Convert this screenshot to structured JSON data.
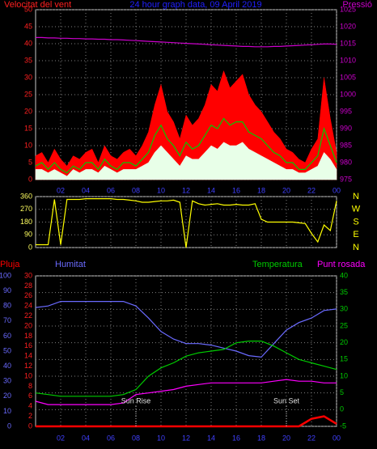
{
  "chart_data": [
    {
      "type": "line",
      "title": "24 hour graph data, 09 April 2019",
      "y_label": "Velocitat del vent",
      "xlim": [
        0,
        24
      ],
      "xticks": [
        {
          "value": 2,
          "label": "02"
        },
        {
          "value": 4,
          "label": "04"
        },
        {
          "value": 6,
          "label": "06"
        },
        {
          "value": 8,
          "label": "08"
        },
        {
          "value": 10,
          "label": "10"
        },
        12,
        14,
        16,
        18,
        20,
        22,
        {
          "value": 24,
          "label": "00"
        }
      ],
      "xcolor": "#4040ff",
      "ylim": [
        0,
        50
      ],
      "yticks": [
        0,
        5,
        10,
        15,
        20,
        25,
        30,
        35,
        40,
        45,
        50
      ],
      "ycolor": "#ff2020",
      "y2lim": [
        975,
        1025
      ],
      "y2ticks": [
        975,
        980,
        985,
        990,
        995,
        1000,
        1005,
        1010,
        1015,
        1020,
        1025
      ],
      "y2color": "#cc00cc",
      "grid": "y",
      "x": [
        0,
        0.5,
        1,
        1.5,
        2,
        2.5,
        3,
        3.5,
        4,
        4.5,
        5,
        5.5,
        6,
        6.5,
        7,
        7.5,
        8,
        8.5,
        9,
        9.5,
        10,
        10.5,
        11,
        11.5,
        12,
        12.5,
        13,
        13.5,
        14,
        14.5,
        15,
        15.5,
        16,
        16.5,
        17,
        17.5,
        18,
        18.5,
        19,
        19.5,
        20,
        20.5,
        21,
        21.5,
        22,
        22.5,
        23,
        23.5,
        24
      ],
      "series": [
        {
          "color": "#ff0000",
          "area": true,
          "values": [
            7,
            8,
            5,
            9,
            6,
            4,
            7,
            6,
            8,
            9,
            5,
            10,
            7,
            6,
            8,
            9,
            7,
            10,
            14,
            22,
            28,
            20,
            17,
            12,
            19,
            16,
            18,
            22,
            28,
            26,
            32,
            27,
            29,
            31,
            25,
            22,
            20,
            17,
            14,
            12,
            9,
            8,
            6,
            5,
            9,
            12,
            30,
            18,
            8
          ]
        },
        {
          "color": "#e8ffe8",
          "area": true,
          "values": [
            3,
            3,
            2,
            3,
            2,
            1,
            3,
            2,
            3,
            3,
            2,
            4,
            3,
            2,
            3,
            3,
            3,
            4,
            5,
            8,
            10,
            8,
            6,
            4,
            7,
            6,
            6,
            8,
            10,
            9,
            11,
            10,
            10,
            11,
            9,
            8,
            7,
            6,
            5,
            4,
            3,
            3,
            2,
            2,
            3,
            4,
            8,
            6,
            3
          ]
        },
        {
          "color": "#00cc00",
          "values": [
            4,
            5,
            3,
            5,
            3,
            2,
            4,
            3,
            5,
            5,
            3,
            6,
            4,
            3,
            5,
            5,
            4,
            6,
            8,
            13,
            16,
            12,
            10,
            7,
            11,
            9,
            10,
            13,
            16,
            15,
            18,
            16,
            17,
            17,
            14,
            13,
            12,
            10,
            8,
            7,
            5,
            5,
            3,
            3,
            5,
            7,
            15,
            10,
            5
          ]
        },
        {
          "name": "Pressió",
          "color": "#cc00cc",
          "axis": "y2",
          "values": [
            1016.8,
            1016.8,
            1016.7,
            1016.7,
            1016.6,
            1016.6,
            1016.5,
            1016.5,
            1016.4,
            1016.4,
            1016.3,
            1016.3,
            1016.2,
            1016.2,
            1016.1,
            1016.0,
            1015.9,
            1015.8,
            1015.7,
            1015.6,
            1015.5,
            1015.4,
            1015.3,
            1015.2,
            1015.1,
            1015.0,
            1014.9,
            1014.8,
            1014.7,
            1014.6,
            1014.5,
            1014.4,
            1014.3,
            1014.2,
            1014.2,
            1014.1,
            1014.1,
            1014.1,
            1014.2,
            1014.2,
            1014.3,
            1014.4,
            1014.5,
            1014.6,
            1014.7,
            1014.8,
            1014.9,
            1014.9,
            1014.8
          ]
        }
      ]
    },
    {
      "type": "line",
      "xlim": [
        0,
        24
      ],
      "ylim": [
        0,
        360
      ],
      "yticks": [
        0,
        90,
        180,
        270,
        360
      ],
      "ycolor": "#ffff60",
      "y2lim": [
        0,
        360
      ],
      "y2ticks": [
        {
          "value": 0,
          "label": "N"
        },
        {
          "value": 90,
          "label": "E"
        },
        {
          "value": 180,
          "label": "S"
        },
        {
          "value": 270,
          "label": "W"
        },
        {
          "value": 360,
          "label": "N"
        }
      ],
      "y2color": "#ffff00",
      "grid": "y",
      "x": [
        0,
        0.5,
        1,
        1.5,
        2,
        2.5,
        3,
        3.5,
        4,
        4.5,
        5,
        5.5,
        6,
        6.5,
        7,
        7.5,
        8,
        8.5,
        9,
        9.5,
        10,
        10.5,
        11,
        11.5,
        12,
        12.5,
        13,
        13.5,
        14,
        14.5,
        15,
        15.5,
        16,
        16.5,
        17,
        17.5,
        18,
        18.5,
        19,
        19.5,
        20,
        20.5,
        21,
        21.5,
        22,
        22.5,
        23,
        23.5,
        24
      ],
      "series": [
        {
          "color": "#ffff00",
          "values": [
            20,
            20,
            20,
            340,
            20,
            340,
            340,
            340,
            345,
            345,
            345,
            345,
            345,
            340,
            340,
            335,
            330,
            320,
            320,
            325,
            330,
            330,
            335,
            320,
            0,
            330,
            310,
            300,
            305,
            310,
            300,
            300,
            305,
            300,
            300,
            310,
            200,
            180,
            180,
            180,
            180,
            180,
            175,
            170,
            100,
            40,
            160,
            120,
            330
          ]
        }
      ]
    },
    {
      "type": "line",
      "xlim": [
        0,
        24
      ],
      "xticks": [
        {
          "value": 2,
          "label": "02"
        },
        {
          "value": 4,
          "label": "04"
        },
        {
          "value": 6,
          "label": "06"
        },
        {
          "value": 8,
          "label": "08"
        },
        {
          "value": 10,
          "label": "10"
        },
        12,
        14,
        16,
        18,
        20,
        22,
        {
          "value": 24,
          "label": "00"
        }
      ],
      "xcolor": "#4040ff",
      "ylim": [
        0,
        100
      ],
      "yticks": [
        0,
        10,
        20,
        30,
        40,
        50,
        60,
        70,
        80,
        90,
        100
      ],
      "ycolor": "#6a6aff",
      "y2lim": [
        -5,
        40
      ],
      "y2ticks": [
        -5,
        0,
        5,
        10,
        15,
        20,
        25,
        30,
        35,
        40
      ],
      "y2color": "#00cc00",
      "y3lim": [
        0,
        30
      ],
      "y3ticks": [
        0,
        2,
        4,
        6,
        8,
        10,
        12,
        14,
        16,
        18,
        20,
        22,
        24,
        26,
        28,
        30
      ],
      "y3color": "#ff2020",
      "grid": "y2",
      "x": [
        0,
        1,
        2,
        3,
        4,
        5,
        6,
        7,
        8,
        9,
        10,
        11,
        12,
        13,
        14,
        15,
        16,
        17,
        18,
        19,
        20,
        21,
        22,
        23,
        24
      ],
      "series": [
        {
          "name": "Pluja",
          "color": "#ff0000",
          "axis": "y3",
          "values": [
            0,
            0,
            0,
            0,
            0,
            0,
            0,
            0,
            0,
            0,
            0,
            0,
            0,
            0,
            0,
            0,
            0,
            0,
            0,
            0,
            0,
            0,
            1.5,
            2,
            0.5
          ]
        },
        {
          "name": "Humitat",
          "color": "#6a6aff",
          "values": [
            79,
            80,
            83,
            83,
            83,
            83,
            83,
            83,
            80,
            72,
            63,
            58,
            55,
            55,
            54,
            52,
            50,
            47,
            46,
            55,
            64,
            69,
            72,
            77,
            78
          ]
        },
        {
          "name": "Temperatura",
          "color": "#00cc00",
          "axis": "y2",
          "values": [
            5,
            4.5,
            4,
            4,
            4,
            4,
            4,
            4.5,
            6,
            10,
            12.5,
            14,
            16,
            17,
            17.5,
            18,
            20,
            20.5,
            20.5,
            19,
            17,
            15,
            14,
            13,
            12
          ]
        },
        {
          "name": "Punt rosada",
          "color": "#ff00ff",
          "axis": "y2",
          "values": [
            2.5,
            1.5,
            1.5,
            1.5,
            1.5,
            1.5,
            1.5,
            2,
            4.5,
            5,
            5.5,
            6,
            7,
            7.5,
            8,
            8,
            8,
            8,
            8,
            8.5,
            9,
            8.5,
            8.5,
            8,
            8
          ]
        }
      ],
      "annotations": [
        {
          "text": "Sun Rise",
          "x": 8
        },
        {
          "text": "Sun Set",
          "x": 20
        }
      ]
    }
  ]
}
